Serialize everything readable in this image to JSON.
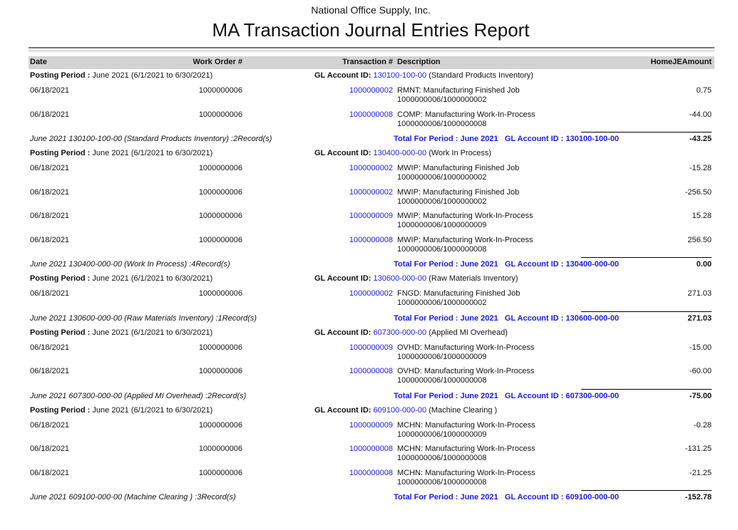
{
  "header": {
    "company": "National Office Supply, Inc.",
    "title": "MA Transaction Journal Entries Report"
  },
  "columns": {
    "date": "Date",
    "work_order": "Work Order #",
    "transaction": "Transaction #",
    "description": "Description",
    "amount": "HomeJEAmount"
  },
  "colors": {
    "link": "#1a1ae6",
    "header_bg": "#d3d3d3"
  },
  "groups": [
    {
      "period_label": "Posting Period :",
      "period": "June 2021  (6/1/2021 to 6/30/2021)",
      "gl_label": "GL Account ID:",
      "gl_id": "130100-100-00",
      "gl_name": "(Standard Products Inventory)",
      "entries": [
        {
          "date": "06/18/2021",
          "work_order": "1000000006",
          "transaction": "1000000002",
          "description": "RMNT: Manufacturing Finished Job",
          "reference": "1000000006/1000000002",
          "amount": "0.75"
        },
        {
          "date": "06/18/2021",
          "work_order": "1000000006",
          "transaction": "1000000008",
          "description": "COMP: Manufacturing Work-In-Process",
          "reference": "1000000006/1000000008",
          "amount": "-44.00"
        }
      ],
      "summary": "June 2021  130100-100-00 (Standard Products Inventory) :2Record(s)",
      "total_label": "Total For Period : June 2021   GL Account ID : 130100-100-00",
      "total": "-43.25"
    },
    {
      "period_label": "Posting Period :",
      "period": "June 2021  (6/1/2021 to 6/30/2021)",
      "gl_label": "GL Account ID:",
      "gl_id": "130400-000-00",
      "gl_name": "(Work In Process)",
      "entries": [
        {
          "date": "06/18/2021",
          "work_order": "1000000006",
          "transaction": "1000000002",
          "description": "MWIP: Manufacturing Finished Job",
          "reference": "1000000006/1000000002",
          "amount": "-15.28"
        },
        {
          "date": "06/18/2021",
          "work_order": "1000000006",
          "transaction": "1000000002",
          "description": "MWIP: Manufacturing Finished Job",
          "reference": "1000000006/1000000002",
          "amount": "-256.50"
        },
        {
          "date": "06/18/2021",
          "work_order": "1000000006",
          "transaction": "1000000009",
          "description": "MWIP: Manufacturing Work-In-Process",
          "reference": "1000000006/1000000009",
          "amount": "15.28"
        },
        {
          "date": "06/18/2021",
          "work_order": "1000000006",
          "transaction": "1000000008",
          "description": "MWIP: Manufacturing Work-In-Process",
          "reference": "1000000006/1000000008",
          "amount": "256.50"
        }
      ],
      "summary": "June 2021  130400-000-00 (Work In Process) :4Record(s)",
      "total_label": "Total For Period : June 2021   GL Account ID : 130400-000-00",
      "total": "0.00"
    },
    {
      "period_label": "Posting Period :",
      "period": "June 2021  (6/1/2021 to 6/30/2021)",
      "gl_label": "GL Account ID:",
      "gl_id": "130600-000-00",
      "gl_name": "(Raw Materials Inventory)",
      "entries": [
        {
          "date": "06/18/2021",
          "work_order": "1000000006",
          "transaction": "1000000002",
          "description": "FNGD: Manufacturing Finished Job",
          "reference": "1000000006/1000000002",
          "amount": "271.03"
        }
      ],
      "summary": "June 2021  130600-000-00 (Raw Materials Inventory) :1Record(s)",
      "total_label": "Total For Period : June 2021   GL Account ID : 130600-000-00",
      "total": "271.03"
    },
    {
      "period_label": "Posting Period :",
      "period": "June 2021  (6/1/2021 to 6/30/2021)",
      "gl_label": "GL Account ID:",
      "gl_id": "607300-000-00",
      "gl_name": "(Applied MI Overhead)",
      "entries": [
        {
          "date": "06/18/2021",
          "work_order": "1000000006",
          "transaction": "1000000009",
          "description": "OVHD: Manufacturing Work-In-Process",
          "reference": "1000000006/1000000009",
          "amount": "-15.00"
        },
        {
          "date": "06/18/2021",
          "work_order": "1000000006",
          "transaction": "1000000008",
          "description": "OVHD: Manufacturing Work-In-Process",
          "reference": "1000000006/1000000008",
          "amount": "-60.00"
        }
      ],
      "summary": "June 2021  607300-000-00 (Applied MI Overhead) :2Record(s)",
      "total_label": "Total For Period : June 2021   GL Account ID : 607300-000-00",
      "total": "-75.00"
    },
    {
      "period_label": "Posting Period :",
      "period": "June 2021  (6/1/2021 to 6/30/2021)",
      "gl_label": "GL Account ID:",
      "gl_id": "609100-000-00",
      "gl_name": "(Machine Clearing )",
      "entries": [
        {
          "date": "06/18/2021",
          "work_order": "1000000006",
          "transaction": "1000000009",
          "description": "MCHN: Manufacturing Work-In-Process",
          "reference": "1000000006/1000000009",
          "amount": "-0.28"
        },
        {
          "date": "06/18/2021",
          "work_order": "1000000006",
          "transaction": "1000000008",
          "description": "MCHN: Manufacturing Work-In-Process",
          "reference": "1000000006/1000000008",
          "amount": "-131.25"
        },
        {
          "date": "06/18/2021",
          "work_order": "1000000006",
          "transaction": "1000000008",
          "description": "MCHN: Manufacturing Work-In-Process",
          "reference": "1000000006/1000000008",
          "amount": "-21.25"
        }
      ],
      "summary": "June 2021  609100-000-00 (Machine Clearing ) :3Record(s)",
      "total_label": "Total For Period : June 2021   GL Account ID : 609100-000-00",
      "total": "-152.78"
    }
  ]
}
